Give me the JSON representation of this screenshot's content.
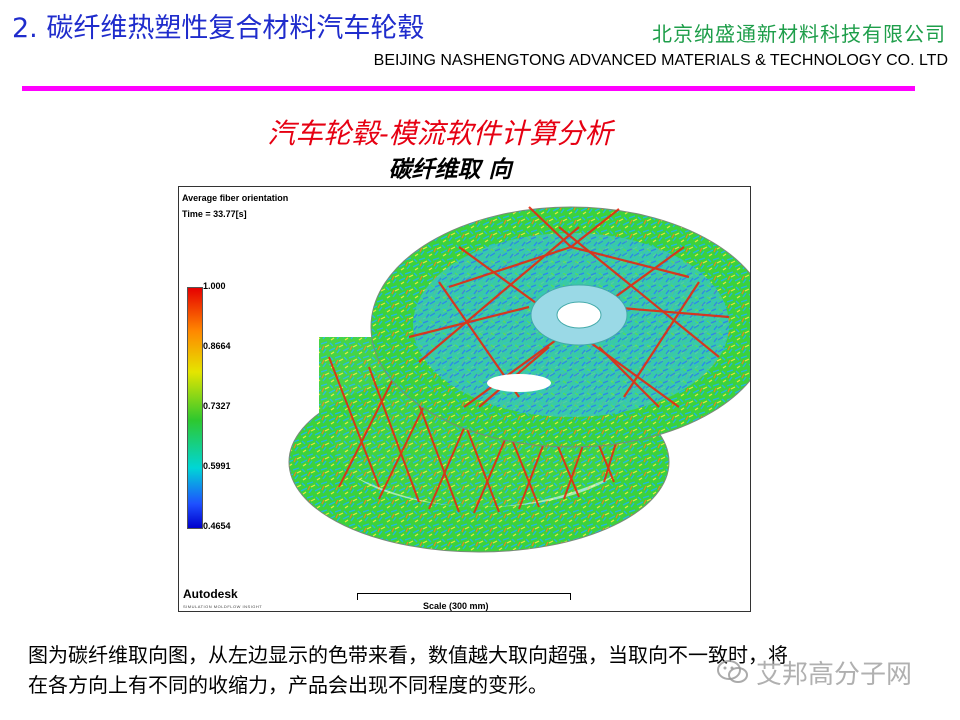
{
  "header": {
    "title": "2. 碳纤维热塑性复合材料汽车轮毂",
    "company_cn": "北京纳盛通新材料科技有限公司",
    "company_en": "BEIJING NASHENGTONG ADVANCED MATERIALS & TECHNOLOGY CO. LTD"
  },
  "section": {
    "subtitle": "汽车轮毂-模流软件计算分析",
    "subsubtitle": "碳纤维取 向"
  },
  "figure": {
    "label_title": "Average fiber orientation",
    "label_time": "Time = 33.77[s]",
    "colorbar_ticks": [
      "1.000",
      "0.8664",
      "0.7327",
      "0.5991",
      "0.4654"
    ],
    "colorbar_colors": [
      "#e60000",
      "#e5e500",
      "#2ec82e",
      "#00d6d6",
      "#0000cc"
    ],
    "brand": "Autodesk",
    "brand_sub": "SIMULATION MOLDFLOW INSIGHT",
    "scale_label": "Scale (300 mm)"
  },
  "caption": {
    "line1": "图为碳纤维取向图，从左边显示的色带来看，数值越大取向超强，当取向不一致时，将",
    "line2": "在各方向上有不同的收缩力，产品会出现不同程度的变形。"
  },
  "watermark": {
    "icon": "wechat-icon",
    "text": "艾邦高分子网"
  }
}
